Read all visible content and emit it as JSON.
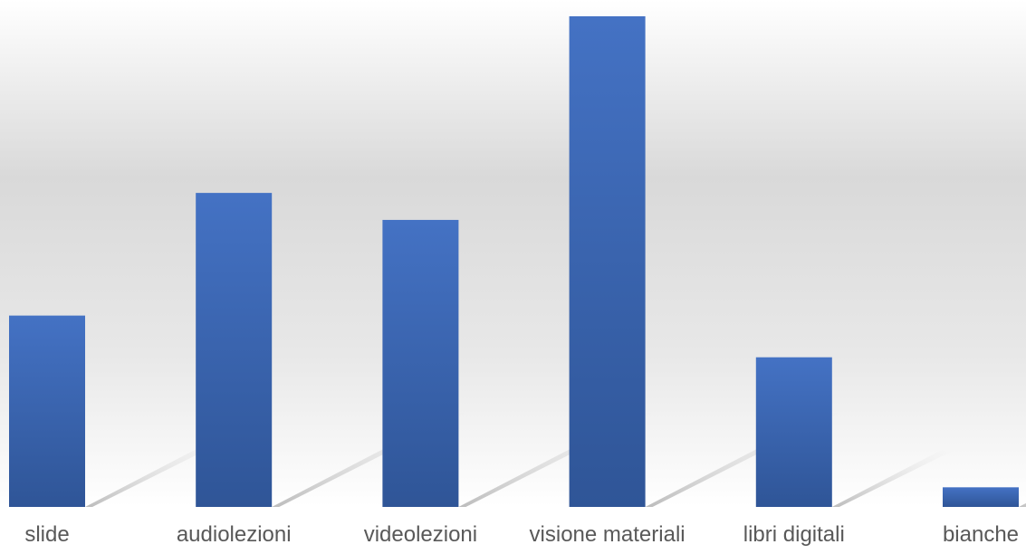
{
  "chart_data": {
    "type": "bar",
    "categories": [
      "slide",
      "audiolezioni",
      "videolezioni",
      "visione materiali",
      "libri digitali",
      "bianche"
    ],
    "values": [
      39,
      64,
      58.5,
      100,
      30.5,
      4
    ],
    "ylim": [
      0,
      100
    ],
    "grid": false,
    "legend": "none",
    "colors": {
      "bar_top": "#4472C4",
      "bar_bottom": "#2F5597",
      "background_top": "#FFFFFF",
      "background_mid": "#D9D9D9",
      "label": "#595959",
      "shadow": "#BFBFBF"
    }
  }
}
